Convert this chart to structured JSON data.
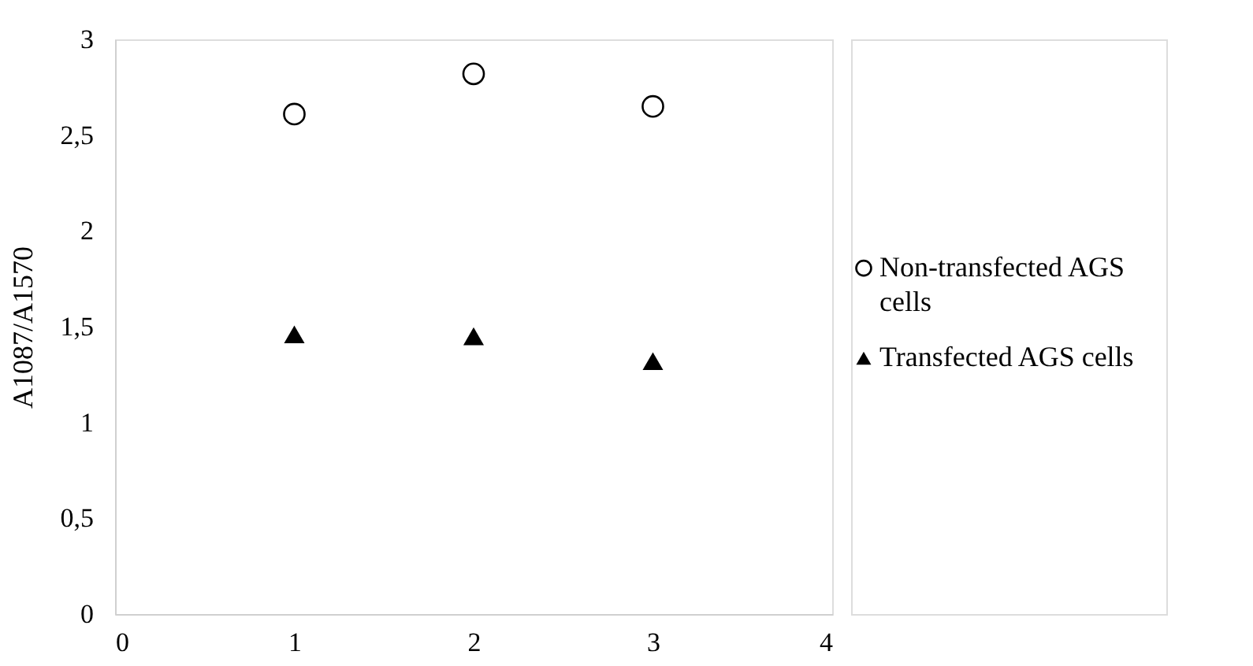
{
  "chart_data": {
    "type": "scatter",
    "ylabel": "A1087/A1570",
    "x": [
      1,
      2,
      3
    ],
    "xlim": [
      0,
      4
    ],
    "xticks": [
      0,
      1,
      2,
      3,
      4
    ],
    "ylim": [
      0,
      3
    ],
    "yticks": [
      0,
      {
        "value": 0.5,
        "label": "0,5"
      },
      1,
      {
        "value": 1.5,
        "label": "1,5"
      },
      2,
      {
        "value": 2.5,
        "label": "2,5"
      },
      3
    ],
    "grid": false,
    "legend": "right",
    "series": [
      {
        "name": "Non-transfected AGS cells",
        "color": "#000000",
        "marker": "circle",
        "values": [
          2.61,
          2.82,
          2.65
        ]
      },
      {
        "name": "Transfected AGS cells",
        "color": "#000000",
        "marker": "triangle",
        "values": [
          1.46,
          1.45,
          1.32
        ]
      }
    ]
  }
}
